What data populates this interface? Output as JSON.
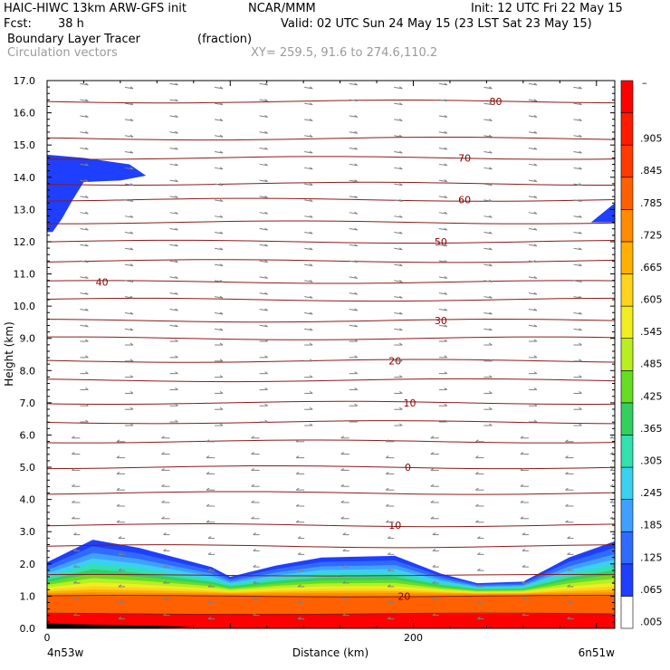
{
  "header": {
    "model": "HAIC-HIWC 13km ARW-GFS init",
    "org": "NCAR/MMM",
    "init": "Init: 12 UTC Fri 22 May 15",
    "fcst_label": "Fcst:",
    "fcst_value": "38 h",
    "valid": "Valid: 02 UTC Sun 24 May 15 (23 LST Sat 23 May 15)",
    "field1_name": "Boundary Layer Tracer",
    "field1_units": "(fraction)",
    "field2_name": "Circulation vectors",
    "xy": "XY= 259.5, 91.6 to 274.6,110.2"
  },
  "chart_data": {
    "type": "heatmap",
    "title": "Boundary Layer Tracer",
    "xlabel": "Distance (km)",
    "ylabel": "Height (km)",
    "xlim": [
      0,
      310
    ],
    "ylim": [
      0.0,
      17.0
    ],
    "x_ticks": [
      0,
      200
    ],
    "y_ticks": [
      "0.0",
      "1.0",
      "2.0",
      "3.0",
      "4.0",
      "5.0",
      "6.0",
      "7.0",
      "8.0",
      "9.0",
      "10.0",
      "11.0",
      "12.0",
      "13.0",
      "14.0",
      "15.0",
      "16.0",
      "17.0"
    ],
    "x_endpoint_labels": [
      "4n53w",
      "6n51w"
    ],
    "colorbar": {
      "labels": [
        ".005",
        ".065",
        ".125",
        ".185",
        ".245",
        ".305",
        ".365",
        ".425",
        ".485",
        ".545",
        ".605",
        ".665",
        ".725",
        ".785",
        ".845",
        ".905"
      ],
      "top_label": "–",
      "colors": [
        "#ffffff",
        "#1f3fff",
        "#2f6bff",
        "#3fa0ff",
        "#3cd0f0",
        "#33e0b0",
        "#33d060",
        "#66dd22",
        "#b8ee22",
        "#f0ee22",
        "#ffd21e",
        "#ffb000",
        "#ff8c00",
        "#ff6000",
        "#ff3a00",
        "#ff1a00",
        "#ff0000"
      ]
    },
    "temperature_contours": [
      {
        "label": "80",
        "height_km": 16.35
      },
      {
        "label": "70",
        "height_km": 14.6
      },
      {
        "label": "60",
        "height_km": 13.3
      },
      {
        "label": "50",
        "height_km": 12.0
      },
      {
        "label": "40",
        "height_km": 10.75
      },
      {
        "label": "30",
        "height_km": 9.55
      },
      {
        "label": "20",
        "height_km": 8.3
      },
      {
        "label": "10",
        "height_km": 7.0
      },
      {
        "label": "0",
        "height_km": 5.0
      },
      {
        "label": "10",
        "height_km": 3.2
      },
      {
        "label": "20",
        "height_km": 1.0
      }
    ],
    "extra_contour_heights_km": [
      17.1,
      15.2,
      13.8,
      12.6,
      11.4,
      10.2,
      9.0,
      7.7,
      6.4,
      5.8,
      4.2,
      2.55,
      1.65,
      0.45
    ],
    "boundary_layer": {
      "tracer_top_km_by_distance": [
        [
          0,
          2.05
        ],
        [
          25,
          2.75
        ],
        [
          50,
          2.5
        ],
        [
          90,
          1.9
        ],
        [
          100,
          1.6
        ],
        [
          125,
          1.95
        ],
        [
          150,
          2.2
        ],
        [
          190,
          2.25
        ],
        [
          215,
          1.7
        ],
        [
          235,
          1.4
        ],
        [
          260,
          1.45
        ],
        [
          285,
          2.2
        ],
        [
          310,
          2.7
        ]
      ],
      "high_tracer_top_km": 1.0
    },
    "upper_patches": [
      {
        "x": [
          0,
          54
        ],
        "z": [
          12.3,
          14.7
        ],
        "value": 0.005
      },
      {
        "x": [
          297,
          310
        ],
        "z": [
          12.6,
          13.2
        ],
        "value": 0.005
      }
    ]
  }
}
